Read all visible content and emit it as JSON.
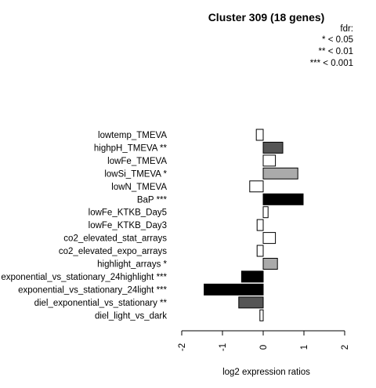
{
  "chart_data": {
    "type": "bar",
    "orientation": "horizontal",
    "title": "Cluster 309 (18 genes)",
    "xlabel": "log2 expression ratios",
    "ylabel": "",
    "xlim": [
      -2,
      2
    ],
    "xticks": [
      "-2",
      "-1",
      "0",
      "1",
      "2"
    ],
    "legend": {
      "title": "fdr:",
      "entries": [
        "* < 0.05",
        "** < 0.01",
        "*** < 0.001"
      ],
      "placement": "top-right"
    },
    "categories": [
      "lowtemp_TMEVA",
      "highpH_TMEVA **",
      "lowFe_TMEVA",
      "lowSi_TMEVA *",
      "lowN_TMEVA",
      "BaP ***",
      "lowFe_KTKB_Day5",
      "lowFe_KTKB_Day3",
      "co2_elevated_stat_arrays",
      "co2_elevated_expo_arrays",
      "highlight_arrays *",
      "exponential_vs_stationary_24highlight ***",
      "exponential_vs_stationary_24light ***",
      "diel_exponential_vs_stationary **",
      "diel_light_vs_dark"
    ],
    "values": [
      -0.17,
      0.48,
      0.3,
      0.85,
      -0.33,
      0.98,
      0.12,
      -0.15,
      0.3,
      -0.15,
      0.35,
      -0.53,
      -1.45,
      -0.6,
      -0.08
    ],
    "colors": [
      "#ffffff",
      "#555555",
      "#ffffff",
      "#aaaaaa",
      "#ffffff",
      "#000000",
      "#ffffff",
      "#ffffff",
      "#ffffff",
      "#ffffff",
      "#aaaaaa",
      "#000000",
      "#000000",
      "#555555",
      "#ffffff"
    ]
  }
}
